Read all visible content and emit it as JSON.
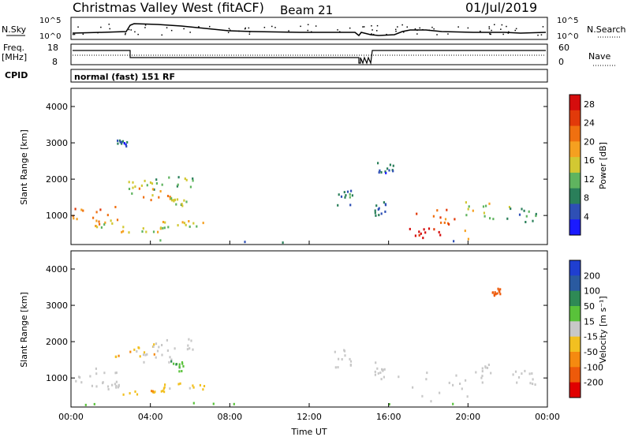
{
  "header": {
    "station": "Christmas Valley West (fitACF)",
    "beam": "Beam 21",
    "date": "01/Jul/2019"
  },
  "side_labels": {
    "nsky": "N.Sky",
    "nsearch": "N.Search",
    "freq": "Freq.",
    "freq_unit": "[MHz]",
    "nave": "Nave",
    "cpid": "CPID",
    "cpid_value": "normal (fast) 151 RF"
  },
  "top_panel_ticks": {
    "noise_top": "10^5",
    "noise_bottom": "10^0",
    "freq_top": "18",
    "freq_bottom": "8",
    "nave_top": "60",
    "nave_bottom": "0"
  },
  "colors": {
    "power": [
      "#1a1aff",
      "#2e4fb5",
      "#2a7f5a",
      "#5fb45f",
      "#d2c832",
      "#f5a020",
      "#f07010",
      "#e23a0a",
      "#d50d0d"
    ],
    "velocity": [
      "#1f3fd0",
      "#2a5aa0",
      "#2e8a55",
      "#59c23a",
      "#c8c8c8",
      "#f2c020",
      "#f58a10",
      "#ee5a0a",
      "#e00000"
    ]
  },
  "chart_data": [
    {
      "type": "heatmap",
      "name": "power",
      "xlabel": "",
      "ylabel": "Slant Range [km]",
      "y_ticks": [
        "1000",
        "2000",
        "3000",
        "4000"
      ],
      "ylim": [
        200,
        4500
      ],
      "x_ticks": [
        "00:00",
        "04:00",
        "08:00",
        "12:00",
        "16:00",
        "20:00",
        "00:00"
      ],
      "xlim": [
        0,
        24
      ],
      "colorbar_label": "Power [dB]",
      "colorbar_ticks": [
        "4",
        "8",
        "12",
        "16",
        "20",
        "24",
        "28"
      ],
      "blobs": [
        {
          "t0": 0.0,
          "t1": 2.4,
          "r0": 900,
          "r1": 1300,
          "v": 22
        },
        {
          "t0": 1.0,
          "t1": 2.6,
          "r0": 700,
          "r1": 900,
          "v": 18
        },
        {
          "t0": 2.2,
          "t1": 4.2,
          "r0": 1600,
          "r1": 2000,
          "v": 14
        },
        {
          "t0": 3.2,
          "t1": 5.2,
          "r0": 1450,
          "r1": 1800,
          "v": 20
        },
        {
          "t0": 4.0,
          "t1": 6.2,
          "r0": 1800,
          "r1": 2150,
          "v": 13
        },
        {
          "t0": 2.4,
          "t1": 4.8,
          "r0": 560,
          "r1": 700,
          "v": 17
        },
        {
          "t0": 4.6,
          "t1": 6.7,
          "r0": 700,
          "r1": 880,
          "v": 18
        },
        {
          "t0": 5.0,
          "t1": 5.8,
          "r0": 1200,
          "r1": 1500,
          "v": 14
        },
        {
          "t0": 13.2,
          "t1": 14.2,
          "r0": 1300,
          "r1": 1800,
          "v": 10
        },
        {
          "t0": 15.2,
          "t1": 15.9,
          "r0": 1000,
          "r1": 1500,
          "v": 9
        },
        {
          "t0": 16.2,
          "t1": 20.0,
          "r0": 350,
          "r1": 1200,
          "v": 24
        },
        {
          "t0": 17.0,
          "t1": 18.6,
          "r0": 400,
          "r1": 700,
          "v": 29
        },
        {
          "t0": 19.8,
          "t1": 21.3,
          "r0": 900,
          "r1": 1400,
          "v": 16
        },
        {
          "t0": 21.8,
          "t1": 23.4,
          "r0": 800,
          "r1": 1300,
          "v": 12
        },
        {
          "t0": 15.4,
          "t1": 16.3,
          "r0": 2200,
          "r1": 2500,
          "v": 8
        },
        {
          "t0": 2.3,
          "t1": 2.8,
          "r0": 2900,
          "r1": 3100,
          "v": 6
        },
        {
          "t0": 0,
          "t1": 24,
          "r0": 200,
          "r1": 350,
          "v": 10
        }
      ]
    },
    {
      "type": "heatmap",
      "name": "velocity",
      "xlabel": "Time UT",
      "ylabel": "Slant Range [km]",
      "y_ticks": [
        "1000",
        "2000",
        "3000",
        "4000"
      ],
      "ylim": [
        200,
        4500
      ],
      "x_ticks": [
        "00:00",
        "04:00",
        "08:00",
        "12:00",
        "16:00",
        "20:00",
        "00:00"
      ],
      "xlim": [
        0,
        24
      ],
      "colorbar_label": "Velocity [m s⁻¹]",
      "colorbar_ticks": [
        "200",
        "100",
        "50",
        "15",
        "-15",
        "-50",
        "-100",
        "-200"
      ],
      "blobs": [
        {
          "t0": 0.0,
          "t1": 2.4,
          "r0": 900,
          "r1": 1300,
          "v": 0
        },
        {
          "t0": 1.0,
          "t1": 2.6,
          "r0": 700,
          "r1": 900,
          "v": 0
        },
        {
          "t0": 2.2,
          "t1": 4.2,
          "r0": 1600,
          "r1": 2000,
          "v": -40
        },
        {
          "t0": 3.2,
          "t1": 5.2,
          "r0": 1450,
          "r1": 1800,
          "v": 0
        },
        {
          "t0": 4.0,
          "t1": 6.2,
          "r0": 1800,
          "r1": 2150,
          "v": 10
        },
        {
          "t0": 2.4,
          "t1": 4.8,
          "r0": 560,
          "r1": 700,
          "v": -40
        },
        {
          "t0": 4.6,
          "t1": 6.7,
          "r0": 700,
          "r1": 880,
          "v": -20
        },
        {
          "t0": 5.0,
          "t1": 5.8,
          "r0": 1200,
          "r1": 1500,
          "v": 40
        },
        {
          "t0": 13.2,
          "t1": 14.2,
          "r0": 1300,
          "r1": 1800,
          "v": 0
        },
        {
          "t0": 15.2,
          "t1": 15.9,
          "r0": 1000,
          "r1": 1500,
          "v": 0
        },
        {
          "t0": 16.2,
          "t1": 20.0,
          "r0": 350,
          "r1": 1200,
          "v": 0
        },
        {
          "t0": 19.8,
          "t1": 21.3,
          "r0": 900,
          "r1": 1400,
          "v": 0
        },
        {
          "t0": 21.8,
          "t1": 23.4,
          "r0": 800,
          "r1": 1300,
          "v": 0
        },
        {
          "t0": 21.2,
          "t1": 21.6,
          "r0": 3300,
          "r1": 3500,
          "v": -150
        },
        {
          "t0": 0,
          "t1": 24,
          "r0": 200,
          "r1": 350,
          "v": 30
        }
      ]
    }
  ]
}
